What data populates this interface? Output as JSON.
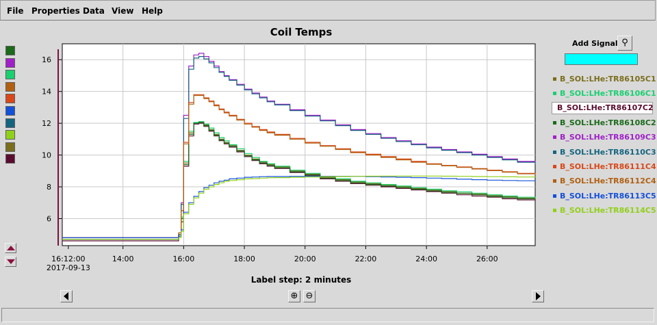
{
  "menu": [
    "File",
    "Properties",
    "Data",
    "View",
    "Help"
  ],
  "chart_data": {
    "type": "line",
    "title": "Coil Temps",
    "x_range": [
      "16:12:00",
      "27:35"
    ],
    "x_ticks": [
      "16:12:00",
      "14:00",
      "16:00",
      "18:00",
      "20:00",
      "22:00",
      "24:00",
      "26:00"
    ],
    "x_tick_sublabel": "2017-09-13",
    "ylim": [
      4.3,
      17.0
    ],
    "y_ticks": [
      6,
      8,
      10,
      12,
      14,
      16
    ],
    "grid": true,
    "step": true,
    "x_values": [
      "12:00",
      "15:45",
      "15:50",
      "15:55",
      "16:00",
      "16:10",
      "16:20",
      "16:30",
      "16:40",
      "16:50",
      "17:00",
      "17:10",
      "17:20",
      "17:30",
      "17:45",
      "18:00",
      "18:15",
      "18:30",
      "18:45",
      "19:00",
      "19:30",
      "20:00",
      "20:30",
      "21:00",
      "21:30",
      "22:00",
      "22:30",
      "23:00",
      "23:30",
      "24:00",
      "24:30",
      "25:00",
      "25:30",
      "26:00",
      "26:30",
      "27:00",
      "27:35"
    ],
    "series": [
      {
        "name": "B_SOL:LHe:TR86105C1",
        "color": "#7a6e1c",
        "values": [
          4.7,
          4.7,
          5.0,
          6.0,
          9.5,
          11.4,
          12.0,
          12.1,
          11.9,
          11.6,
          11.3,
          11.0,
          10.8,
          10.6,
          10.3,
          10.0,
          9.75,
          9.55,
          9.4,
          9.25,
          9.0,
          8.8,
          8.6,
          8.45,
          8.3,
          8.2,
          8.1,
          8.0,
          7.9,
          7.8,
          7.7,
          7.6,
          7.55,
          7.45,
          7.38,
          7.3,
          7.25
        ]
      },
      {
        "name": "B_SOL:LHe:TR86106C1",
        "color": "#18d070",
        "values": [
          4.7,
          4.7,
          5.0,
          6.1,
          9.6,
          11.5,
          12.05,
          12.1,
          11.95,
          11.7,
          11.4,
          11.1,
          10.9,
          10.65,
          10.4,
          10.1,
          9.85,
          9.6,
          9.45,
          9.3,
          9.05,
          8.85,
          8.65,
          8.5,
          8.35,
          8.25,
          8.15,
          8.05,
          7.95,
          7.85,
          7.75,
          7.68,
          7.6,
          7.5,
          7.42,
          7.35,
          7.3
        ]
      },
      {
        "name": "B_SOL:LHe:TR86107C2",
        "color": "#5a0c2e",
        "values": [
          4.6,
          4.6,
          4.9,
          5.8,
          9.3,
          11.2,
          11.95,
          12.0,
          11.8,
          11.5,
          11.2,
          10.9,
          10.7,
          10.5,
          10.2,
          9.9,
          9.65,
          9.45,
          9.3,
          9.15,
          8.9,
          8.7,
          8.5,
          8.35,
          8.2,
          8.1,
          8.0,
          7.9,
          7.8,
          7.7,
          7.6,
          7.5,
          7.42,
          7.35,
          7.25,
          7.18,
          7.1
        ]
      },
      {
        "name": "B_SOL:LHe:TR86108C2",
        "color": "#1a6a1a",
        "values": [
          4.7,
          4.7,
          5.0,
          6.0,
          9.4,
          11.3,
          12.0,
          12.05,
          11.85,
          11.55,
          11.25,
          10.95,
          10.75,
          10.55,
          10.25,
          9.95,
          9.7,
          9.5,
          9.35,
          9.2,
          8.95,
          8.75,
          8.55,
          8.4,
          8.25,
          8.15,
          8.05,
          7.95,
          7.85,
          7.75,
          7.65,
          7.58,
          7.5,
          7.4,
          7.32,
          7.25,
          7.2
        ]
      },
      {
        "name": "B_SOL:LHe:TR86109C3",
        "color": "#a020c8",
        "values": [
          4.7,
          4.7,
          5.0,
          7.0,
          12.5,
          15.6,
          16.3,
          16.4,
          16.2,
          15.9,
          15.6,
          15.25,
          15.0,
          14.75,
          14.45,
          14.15,
          13.9,
          13.65,
          13.4,
          13.2,
          12.85,
          12.5,
          12.2,
          11.9,
          11.6,
          11.35,
          11.1,
          10.9,
          10.7,
          10.5,
          10.35,
          10.2,
          10.05,
          9.9,
          9.75,
          9.6,
          9.4
        ]
      },
      {
        "name": "B_SOL:LHe:TR86110C3",
        "color": "#146480",
        "values": [
          4.7,
          4.7,
          5.0,
          6.9,
          12.3,
          15.4,
          16.1,
          16.2,
          16.05,
          15.8,
          15.5,
          15.2,
          14.95,
          14.7,
          14.4,
          14.1,
          13.85,
          13.6,
          13.35,
          13.15,
          12.8,
          12.45,
          12.15,
          11.85,
          11.55,
          11.3,
          11.05,
          10.85,
          10.65,
          10.45,
          10.3,
          10.15,
          10.0,
          9.85,
          9.7,
          9.55,
          9.4
        ]
      },
      {
        "name": "B_SOL:LHe:TR86111C4",
        "color": "#d84818",
        "values": [
          4.8,
          4.8,
          5.1,
          6.5,
          10.8,
          13.3,
          13.8,
          13.8,
          13.6,
          13.4,
          13.15,
          12.9,
          12.7,
          12.5,
          12.25,
          12.0,
          11.8,
          11.6,
          11.45,
          11.3,
          11.05,
          10.8,
          10.6,
          10.4,
          10.2,
          10.05,
          9.9,
          9.75,
          9.6,
          9.45,
          9.35,
          9.25,
          9.15,
          9.05,
          8.95,
          8.85,
          8.75
        ]
      },
      {
        "name": "B_SOL:LHe:TR86112C4",
        "color": "#b06010",
        "values": [
          4.8,
          4.8,
          5.1,
          6.5,
          10.7,
          13.2,
          13.75,
          13.75,
          13.55,
          13.35,
          13.1,
          12.85,
          12.65,
          12.45,
          12.2,
          11.95,
          11.75,
          11.55,
          11.4,
          11.25,
          11.0,
          10.75,
          10.55,
          10.35,
          10.15,
          10.0,
          9.85,
          9.7,
          9.55,
          9.42,
          9.32,
          9.22,
          9.12,
          9.02,
          8.92,
          8.82,
          8.72
        ]
      },
      {
        "name": "B_SOL:LHe:TR86113C5",
        "color": "#1450d8",
        "values": [
          4.8,
          4.8,
          4.9,
          5.3,
          6.4,
          7.0,
          7.4,
          7.7,
          7.95,
          8.1,
          8.25,
          8.35,
          8.42,
          8.5,
          8.55,
          8.6,
          8.62,
          8.64,
          8.65,
          8.65,
          8.66,
          8.66,
          8.66,
          8.66,
          8.66,
          8.64,
          8.62,
          8.6,
          8.58,
          8.55,
          8.52,
          8.48,
          8.45,
          8.42,
          8.4,
          8.38,
          8.36
        ]
      },
      {
        "name": "B_SOL:LHe:TR86114C5",
        "color": "#90d018",
        "values": [
          4.7,
          4.7,
          4.8,
          5.2,
          6.3,
          6.9,
          7.3,
          7.6,
          7.85,
          8.0,
          8.15,
          8.25,
          8.35,
          8.4,
          8.45,
          8.5,
          8.52,
          8.55,
          8.57,
          8.58,
          8.6,
          8.62,
          8.64,
          8.65,
          8.66,
          8.67,
          8.68,
          8.68,
          8.68,
          8.68,
          8.67,
          8.66,
          8.65,
          8.64,
          8.63,
          8.62,
          8.6
        ]
      }
    ],
    "x_label": "Label step: 2 minutes"
  },
  "swatch_colors": [
    "#1a6a1a",
    "#a020c8",
    "#18d070",
    "#b06010",
    "#d84818",
    "#1450d8",
    "#146480",
    "#90d018",
    "#7a6e1c",
    "#5a0c2e"
  ],
  "add_signal": {
    "label": "Add Signal",
    "value": ""
  },
  "legend": {
    "items": [
      {
        "label": "B_SOL:LHe:TR86105C1",
        "color": "#7a6e1c"
      },
      {
        "label": "B_SOL:LHe:TR86106C1",
        "color": "#18d070"
      },
      {
        "label": "B_SOL:LHe:TR86107C2",
        "color": "#5a0c2e",
        "selected": true
      },
      {
        "label": "B_SOL:LHe:TR86108C2",
        "color": "#1a6a1a"
      },
      {
        "label": "B_SOL:LHe:TR86109C3",
        "color": "#a020c8"
      },
      {
        "label": "B_SOL:LHe:TR86110C3",
        "color": "#146480"
      },
      {
        "label": "B_SOL:LHe:TR86111C4",
        "color": "#d84818"
      },
      {
        "label": "B_SOL:LHe:TR86112C4",
        "color": "#b06010"
      },
      {
        "label": "B_SOL:LHe:TR86113C5",
        "color": "#1450d8"
      },
      {
        "label": "B_SOL:LHe:TR86114C5",
        "color": "#90d018"
      }
    ]
  }
}
